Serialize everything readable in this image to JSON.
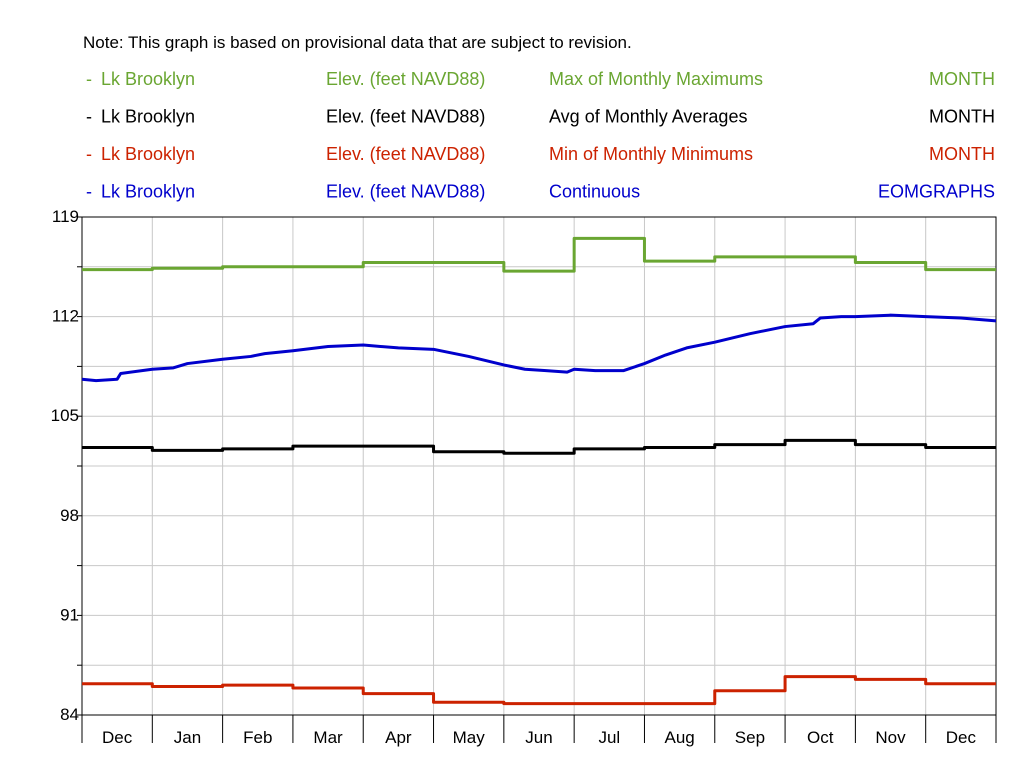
{
  "note": "Note: This graph is based on provisional data that are subject to revision.",
  "colors": {
    "max": "#6aa632",
    "avg": "#000000",
    "min": "#cc2200",
    "cont": "#0000cc",
    "grid": "#c8c8c8"
  },
  "legend": [
    {
      "key": "max",
      "marker": "-",
      "site": "Lk Brooklyn",
      "param": "Elev. (feet NAVD88)",
      "stat": "Max of Monthly Maximums",
      "interval": "MONTH"
    },
    {
      "key": "avg",
      "marker": "-",
      "site": "Lk Brooklyn",
      "param": "Elev. (feet NAVD88)",
      "stat": "Avg of Monthly Averages",
      "interval": "MONTH"
    },
    {
      "key": "min",
      "marker": "-",
      "site": "Lk Brooklyn",
      "param": "Elev. (feet NAVD88)",
      "stat": "Min of Monthly Minimums",
      "interval": "MONTH"
    },
    {
      "key": "cont",
      "marker": "-",
      "site": "Lk Brooklyn",
      "param": "Elev. (feet NAVD88)",
      "stat": "Continuous",
      "interval": "EOMGRAPHS"
    }
  ],
  "chart_data": {
    "type": "line",
    "x": [
      "Dec",
      "Jan",
      "Feb",
      "Mar",
      "Apr",
      "May",
      "Jun",
      "Jul",
      "Aug",
      "Sep",
      "Oct",
      "Nov",
      "Dec"
    ],
    "y_ticks": [
      "119",
      "112",
      "105",
      "98",
      "91",
      "84"
    ],
    "ylim": [
      84,
      119
    ],
    "xlim": [
      0,
      13
    ],
    "grid": true,
    "series": [
      {
        "key": "max",
        "name": "Max of Monthly Maximums",
        "step": true,
        "values": [
          115.3,
          115.4,
          115.5,
          115.5,
          115.8,
          115.8,
          115.2,
          117.5,
          115.9,
          116.2,
          116.2,
          115.8,
          115.3
        ]
      },
      {
        "key": "avg",
        "name": "Avg of Monthly Averages",
        "step": true,
        "values": [
          102.8,
          102.6,
          102.7,
          102.9,
          102.9,
          102.5,
          102.4,
          102.7,
          102.8,
          103.0,
          103.3,
          103.0,
          102.8
        ]
      },
      {
        "key": "min",
        "name": "Min of Monthly Minimums",
        "step": true,
        "values": [
          86.2,
          86.0,
          86.1,
          85.9,
          85.5,
          84.9,
          84.8,
          84.8,
          84.8,
          85.7,
          86.7,
          86.5,
          86.2
        ]
      },
      {
        "key": "cont",
        "name": "Continuous",
        "step": false,
        "x": [
          0,
          0.2,
          0.5,
          0.55,
          1,
          1.3,
          1.5,
          2,
          2.4,
          2.6,
          3,
          3.5,
          4,
          4.5,
          5,
          5.5,
          6,
          6.3,
          6.6,
          6.9,
          7,
          7.3,
          7.7,
          8,
          8.3,
          8.6,
          9,
          9.5,
          10,
          10.4,
          10.5,
          10.8,
          11,
          11.5,
          12,
          12.5,
          13
        ],
        "values": [
          107.6,
          107.5,
          107.6,
          108.0,
          108.3,
          108.4,
          108.7,
          109.0,
          109.2,
          109.4,
          109.6,
          109.9,
          110.0,
          109.8,
          109.7,
          109.2,
          108.6,
          108.3,
          108.2,
          108.1,
          108.3,
          108.2,
          108.2,
          108.7,
          109.3,
          109.8,
          110.2,
          110.8,
          111.3,
          111.5,
          111.9,
          112.0,
          112.0,
          112.1,
          112.0,
          111.9,
          111.7
        ]
      }
    ]
  }
}
